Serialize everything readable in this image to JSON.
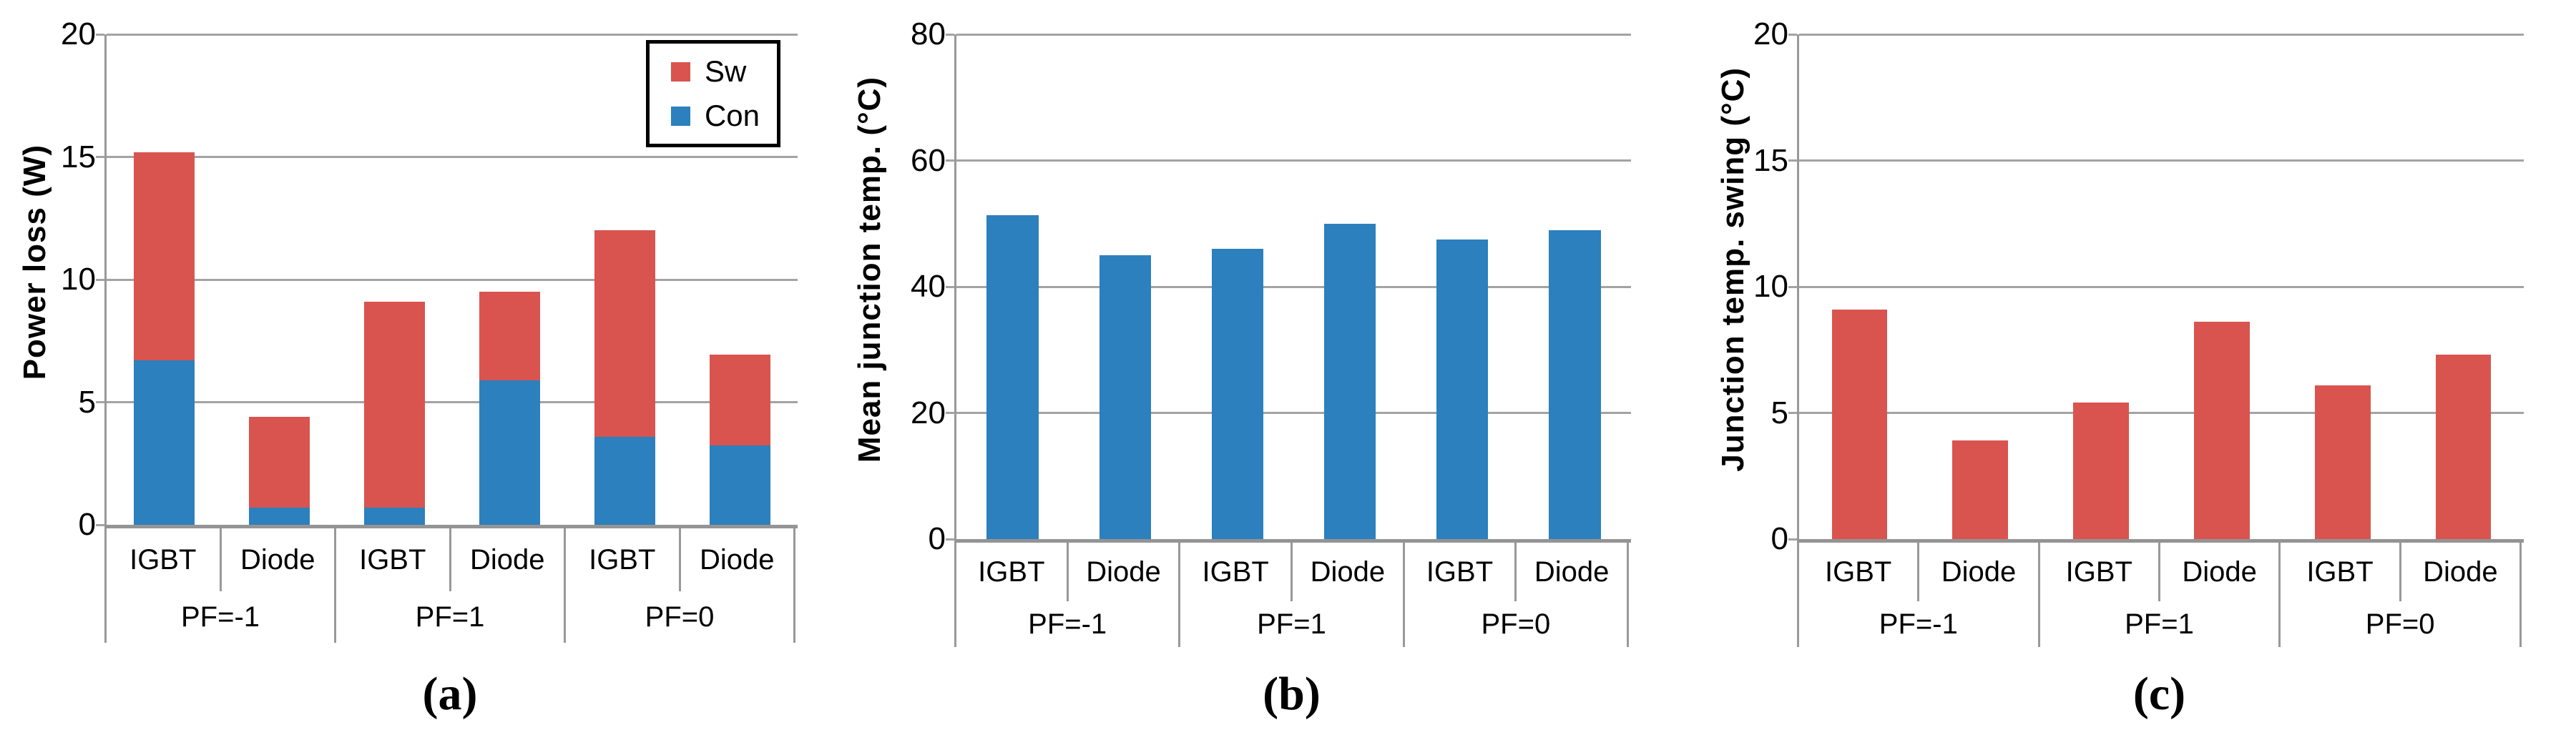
{
  "figure": {
    "background": "#ffffff",
    "axis_color": "#999999",
    "bar_red": "#d9544f",
    "bar_blue": "#2b80bd",
    "captions": [
      "(a)",
      "(b)",
      "(c)"
    ]
  },
  "chart_data": [
    {
      "id": "a",
      "type": "bar",
      "stacked": true,
      "caption": "(a)",
      "ylabel": "Power loss (W)",
      "ylim": [
        0,
        20
      ],
      "yticks": [
        0,
        5,
        10,
        15,
        20
      ],
      "grid": true,
      "bar_width_frac": 0.53,
      "categories": [
        "IGBT",
        "Diode",
        "IGBT",
        "Diode",
        "IGBT",
        "Diode"
      ],
      "group_labels": [
        "PF=-1",
        "PF=1",
        "PF=0"
      ],
      "legend": {
        "position": "top-right",
        "entries": [
          {
            "label": "Sw",
            "color": "#d9544f"
          },
          {
            "label": "Con",
            "color": "#2b80bd"
          }
        ]
      },
      "series": [
        {
          "name": "Con",
          "color": "#2b80bd",
          "values": [
            6.7,
            0.7,
            0.7,
            5.9,
            3.6,
            3.25
          ]
        },
        {
          "name": "Sw",
          "color": "#d9544f",
          "values": [
            8.5,
            3.7,
            8.4,
            3.6,
            8.4,
            3.7
          ]
        }
      ],
      "stack_totals": [
        15.2,
        4.4,
        9.1,
        9.5,
        12.0,
        6.95
      ]
    },
    {
      "id": "b",
      "type": "bar",
      "stacked": false,
      "caption": "(b)",
      "ylabel": "Mean junction temp. (°C)",
      "ylim": [
        0,
        80
      ],
      "yticks": [
        0,
        20,
        40,
        60,
        80
      ],
      "grid": true,
      "bar_width_frac": 0.46,
      "categories": [
        "IGBT",
        "Diode",
        "IGBT",
        "Diode",
        "IGBT",
        "Diode"
      ],
      "group_labels": [
        "PF=-1",
        "PF=1",
        "PF=0"
      ],
      "series": [
        {
          "name": "Mean junction temp.",
          "color": "#2b80bd",
          "values": [
            51.3,
            45,
            46,
            50,
            47.5,
            49
          ]
        }
      ]
    },
    {
      "id": "c",
      "type": "bar",
      "stacked": false,
      "caption": "(c)",
      "ylabel": "Junction temp. swing (°C)",
      "ylim": [
        0,
        20
      ],
      "yticks": [
        0,
        5,
        10,
        15,
        20
      ],
      "grid": true,
      "bar_width_frac": 0.46,
      "categories": [
        "IGBT",
        "Diode",
        "IGBT",
        "Diode",
        "IGBT",
        "Diode"
      ],
      "group_labels": [
        "PF=-1",
        "PF=1",
        "PF=0"
      ],
      "series": [
        {
          "name": "Junction temp. swing",
          "color": "#d9544f",
          "values": [
            9.1,
            3.9,
            5.4,
            8.6,
            6.1,
            7.3
          ]
        }
      ]
    }
  ]
}
